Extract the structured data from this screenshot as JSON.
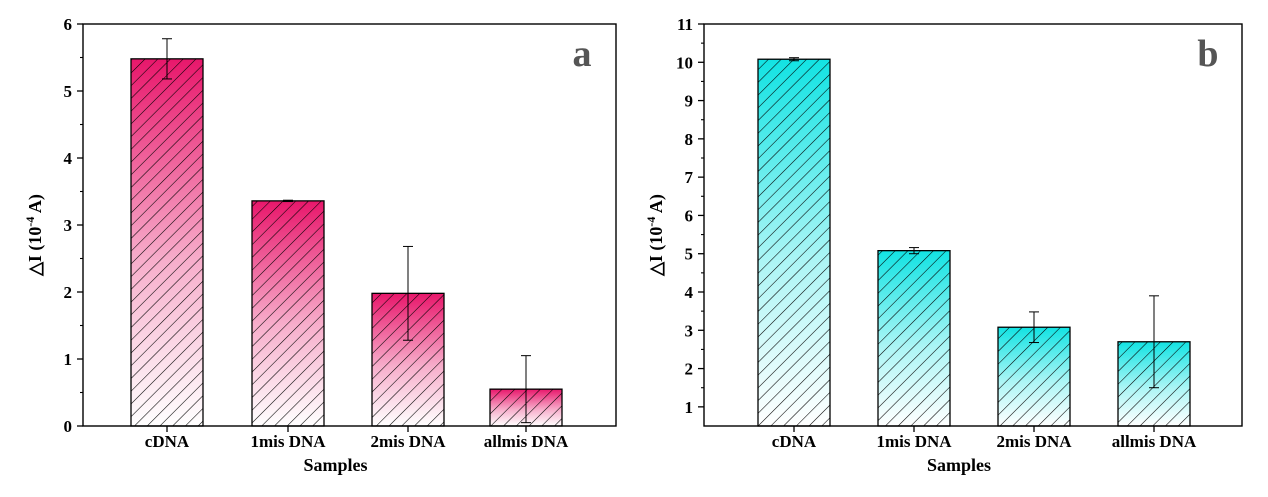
{
  "colors": {
    "a": "#E8176B",
    "b": "#12E3E3"
  },
  "chart_data": [
    {
      "panel": "a",
      "type": "bar",
      "panel_label": "a",
      "categories": [
        "cDNA",
        "1mis DNA",
        "2mis DNA",
        "allmis DNA"
      ],
      "values": [
        5.48,
        3.36,
        1.98,
        0.55
      ],
      "errors": [
        0.3,
        0.01,
        0.7,
        0.5
      ],
      "xlabel": "Samples",
      "ylabel_main": "△I (10",
      "ylabel_sup": "-4",
      "ylabel_tail": " A)",
      "ylim": [
        0,
        6
      ],
      "yticks": [
        0,
        1,
        2,
        3,
        4,
        5,
        6
      ],
      "color": "#E8176B",
      "fill": "gradient with diagonal hatch"
    },
    {
      "panel": "b",
      "type": "bar",
      "panel_label": "b",
      "categories": [
        "cDNA",
        "1mis DNA",
        "2mis DNA",
        "allmis DNA"
      ],
      "values": [
        10.08,
        5.08,
        3.08,
        2.7
      ],
      "errors": [
        0.04,
        0.08,
        0.4,
        1.2
      ],
      "xlabel": "Samples",
      "ylabel_main": "△I (10",
      "ylabel_sup": "-4",
      "ylabel_tail": " A)",
      "ylim": [
        0.5,
        11
      ],
      "yticks": [
        1,
        2,
        3,
        4,
        5,
        6,
        7,
        8,
        9,
        10,
        11
      ],
      "color": "#12E3E3",
      "fill": "gradient with diagonal hatch"
    }
  ]
}
